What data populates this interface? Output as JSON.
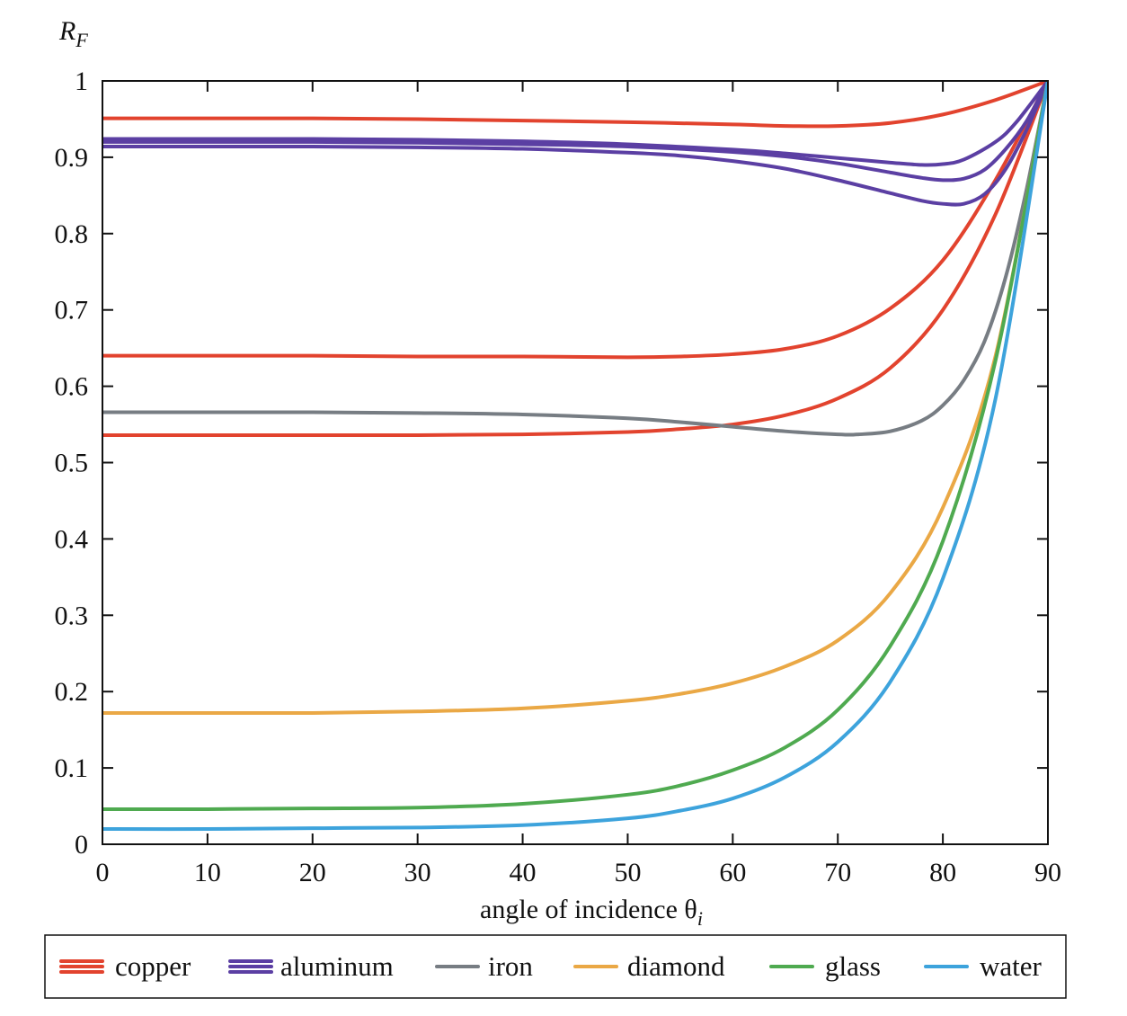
{
  "chart_data": {
    "type": "line",
    "ylabel_main": "R",
    "ylabel_sub": "F",
    "xlabel_main": "angle of incidence θ",
    "xlabel_sub": "i",
    "xlim": [
      0,
      90
    ],
    "ylim": [
      0,
      1
    ],
    "x_ticks": [
      0,
      10,
      20,
      30,
      40,
      50,
      60,
      70,
      80,
      90
    ],
    "y_ticks": [
      0,
      0.1,
      0.2,
      0.3,
      0.4,
      0.5,
      0.6,
      0.7,
      0.8,
      0.9,
      1
    ],
    "x_tick_labels": [
      "0",
      "10",
      "20",
      "30",
      "40",
      "50",
      "60",
      "70",
      "80",
      "90"
    ],
    "y_tick_labels": [
      "0",
      "0.1",
      "0.2",
      "0.3",
      "0.4",
      "0.5",
      "0.6",
      "0.7",
      "0.8",
      "0.9",
      "1"
    ],
    "grid": false,
    "legend_position": "bottom",
    "legend": [
      {
        "name": "copper",
        "color": "#e2432e",
        "lines": 3
      },
      {
        "name": "aluminum",
        "color": "#5b3fa3",
        "lines": 3
      },
      {
        "name": "iron",
        "color": "#777d83",
        "lines": 1
      },
      {
        "name": "diamond",
        "color": "#eaa845",
        "lines": 1
      },
      {
        "name": "glass",
        "color": "#4faa50",
        "lines": 1
      },
      {
        "name": "water",
        "color": "#3da3dc",
        "lines": 1
      }
    ],
    "series": [
      {
        "material": "copper",
        "color": "#e2432e",
        "x": [
          0,
          10,
          20,
          30,
          40,
          50,
          60,
          65,
          70,
          75,
          80,
          85,
          90
        ],
        "y": [
          0.951,
          0.951,
          0.951,
          0.95,
          0.948,
          0.946,
          0.943,
          0.941,
          0.941,
          0.945,
          0.956,
          0.975,
          1.0
        ]
      },
      {
        "material": "copper",
        "color": "#e2432e",
        "x": [
          0,
          10,
          20,
          30,
          40,
          50,
          55,
          60,
          65,
          70,
          75,
          80,
          85,
          90
        ],
        "y": [
          0.64,
          0.64,
          0.64,
          0.639,
          0.639,
          0.638,
          0.639,
          0.642,
          0.649,
          0.666,
          0.702,
          0.765,
          0.87,
          1.0
        ]
      },
      {
        "material": "copper",
        "color": "#e2432e",
        "x": [
          0,
          10,
          20,
          30,
          40,
          50,
          55,
          60,
          65,
          70,
          75,
          80,
          85,
          90
        ],
        "y": [
          0.536,
          0.536,
          0.536,
          0.536,
          0.537,
          0.54,
          0.544,
          0.55,
          0.562,
          0.584,
          0.624,
          0.7,
          0.825,
          1.0
        ]
      },
      {
        "material": "aluminum",
        "color": "#5b3fa3",
        "x": [
          0,
          10,
          20,
          30,
          40,
          50,
          60,
          65,
          70,
          75,
          78,
          80,
          82,
          85,
          87,
          90
        ],
        "y": [
          0.924,
          0.924,
          0.924,
          0.923,
          0.921,
          0.917,
          0.91,
          0.905,
          0.899,
          0.893,
          0.89,
          0.891,
          0.897,
          0.92,
          0.946,
          1.0
        ]
      },
      {
        "material": "aluminum",
        "color": "#5b3fa3",
        "x": [
          0,
          10,
          20,
          30,
          40,
          50,
          60,
          65,
          70,
          75,
          78,
          80,
          82,
          84,
          86,
          88,
          90
        ],
        "y": [
          0.92,
          0.92,
          0.92,
          0.919,
          0.917,
          0.914,
          0.907,
          0.901,
          0.892,
          0.88,
          0.873,
          0.87,
          0.872,
          0.884,
          0.911,
          0.948,
          1.0
        ]
      },
      {
        "material": "aluminum",
        "color": "#5b3fa3",
        "x": [
          0,
          10,
          20,
          30,
          40,
          50,
          55,
          60,
          65,
          70,
          75,
          78,
          80,
          82,
          84,
          86,
          88,
          90
        ],
        "y": [
          0.914,
          0.914,
          0.914,
          0.913,
          0.911,
          0.906,
          0.902,
          0.895,
          0.885,
          0.87,
          0.853,
          0.843,
          0.839,
          0.839,
          0.852,
          0.885,
          0.937,
          1.0
        ]
      },
      {
        "material": "iron",
        "color": "#777d83",
        "x": [
          0,
          10,
          20,
          30,
          40,
          50,
          55,
          60,
          65,
          70,
          72,
          75,
          78,
          80,
          82,
          84,
          86,
          88,
          90
        ],
        "y": [
          0.566,
          0.566,
          0.566,
          0.565,
          0.563,
          0.558,
          0.553,
          0.547,
          0.541,
          0.537,
          0.537,
          0.541,
          0.555,
          0.575,
          0.608,
          0.66,
          0.744,
          0.86,
          1.0
        ]
      },
      {
        "material": "diamond",
        "color": "#eaa845",
        "x": [
          0,
          10,
          20,
          30,
          40,
          50,
          55,
          60,
          65,
          70,
          75,
          80,
          85,
          90
        ],
        "y": [
          0.172,
          0.172,
          0.172,
          0.174,
          0.178,
          0.188,
          0.197,
          0.211,
          0.233,
          0.267,
          0.329,
          0.441,
          0.639,
          1.0
        ]
      },
      {
        "material": "glass",
        "color": "#4faa50",
        "x": [
          0,
          10,
          20,
          30,
          40,
          50,
          55,
          60,
          65,
          70,
          75,
          80,
          85,
          90
        ],
        "y": [
          0.046,
          0.046,
          0.047,
          0.048,
          0.053,
          0.065,
          0.077,
          0.097,
          0.127,
          0.176,
          0.26,
          0.397,
          0.633,
          1.0
        ]
      },
      {
        "material": "water",
        "color": "#3da3dc",
        "x": [
          0,
          10,
          20,
          30,
          40,
          50,
          55,
          60,
          65,
          70,
          75,
          80,
          85,
          90
        ],
        "y": [
          0.02,
          0.02,
          0.021,
          0.022,
          0.025,
          0.034,
          0.044,
          0.06,
          0.088,
          0.134,
          0.213,
          0.348,
          0.583,
          1.0
        ]
      }
    ]
  }
}
